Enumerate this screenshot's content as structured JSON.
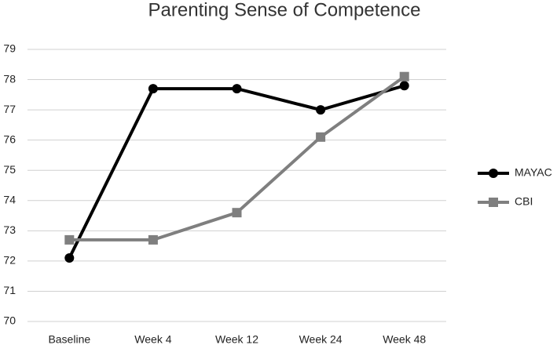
{
  "chart_data": {
    "type": "line",
    "title": "Parenting Sense of Competence",
    "categories": [
      "Baseline",
      "Week 4",
      "Week 12",
      "Week 24",
      "Week 48"
    ],
    "series": [
      {
        "name": "MAYAC",
        "color": "#000000",
        "marker": "circle",
        "values": [
          72.1,
          77.7,
          77.7,
          77.0,
          77.8
        ]
      },
      {
        "name": "CBI",
        "color": "#7f7f7f",
        "marker": "square",
        "values": [
          72.7,
          72.7,
          73.6,
          76.1,
          78.1
        ]
      }
    ],
    "ylim": [
      70,
      79
    ],
    "yticks": [
      70,
      71,
      72,
      73,
      74,
      75,
      76,
      77,
      78,
      79
    ],
    "grid": true,
    "legend": "right"
  }
}
